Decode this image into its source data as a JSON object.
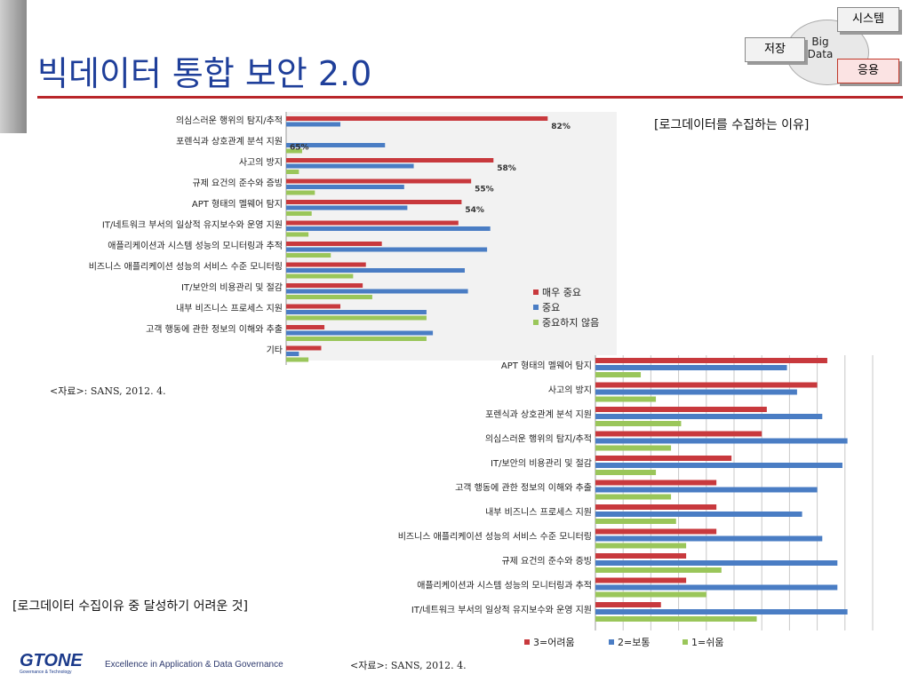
{
  "slide": {
    "title": "빅데이터 통합 보안 2.0"
  },
  "diagram": {
    "left_box": "저장",
    "top_box": "시스템",
    "bottom_box": "응용",
    "center_line1": "Big",
    "center_line2": "Data"
  },
  "chart1": {
    "caption": "[로그데이터를 수집하는 이유]",
    "source": "<자료>: SANS, 2012. 4.",
    "chart_data": {
      "type": "bar",
      "orientation": "horizontal",
      "categories": [
        "의심스러운 행위의 탐지/추적",
        "포렌식과 상호관계 분석 지원",
        "사고의 방지",
        "규제 요건의 준수와 증빙",
        "APT 형태의 멜웨어 탐지",
        "IT/네트워크 부서의 일상적 유지보수와 운영 지원",
        "애플리케이션과 시스템 성능의 모니터링과 추적",
        "비즈니스 애플리케이션 성능의 서비스 수준 모니터링",
        "IT/보안의 비용관리 및 절감",
        "내부 비즈니스 프로세스 지원",
        "고객 행동에 관한 정보의 이해와 추출",
        "기타"
      ],
      "series": [
        {
          "name": "매우 중요",
          "color": "#c8393d",
          "values": [
            82,
            0,
            65,
            58,
            55,
            54,
            30,
            25,
            24,
            17,
            12,
            11
          ]
        },
        {
          "name": "중요",
          "color": "#4a7dc4",
          "values": [
            17,
            31,
            40,
            37,
            38,
            64,
            63,
            56,
            57,
            44,
            46,
            4
          ]
        },
        {
          "name": "중요하지 않음",
          "color": "#9ac65a",
          "values": [
            0,
            5,
            4,
            9,
            8,
            7,
            14,
            21,
            27,
            44,
            44,
            7
          ]
        }
      ],
      "value_labels": [
        "82%",
        "65%",
        "58%",
        "55%",
        "54%"
      ],
      "xlim": [
        0,
        100
      ],
      "legend_position": "right"
    }
  },
  "chart2": {
    "caption": "[로그데이터 수집이유 중 달성하기 어려운 것]",
    "source": "<자료>: SANS, 2012. 4.",
    "chart_data": {
      "type": "bar",
      "orientation": "horizontal",
      "categories": [
        "APT 형태의 멜웨어 탐지",
        "사고의 방지",
        "포렌식과 상호관계 분석 지원",
        "의심스러운 행위의 탐지/추적",
        "IT/보안의 비용관리 및 절감",
        "고객 행동에 관한 정보의 이해와 추출",
        "내부 비즈니스 프로세스 지원",
        "비즈니스 애플리케이션 성능의 서비스 수준 모니터링",
        "규제 요건의 준수와 증빙",
        "애플리케이션과 시스템 성능의 모니터링과 추적",
        "IT/네트워크 부서의 일상적 유지보수와 운영 지원"
      ],
      "series": [
        {
          "name": "3=어려움",
          "color": "#c8393d",
          "values": [
            46,
            44,
            34,
            33,
            27,
            24,
            24,
            24,
            18,
            18,
            13
          ]
        },
        {
          "name": "2=보통",
          "color": "#4a7dc4",
          "values": [
            38,
            40,
            45,
            50,
            49,
            44,
            41,
            45,
            48,
            48,
            50
          ]
        },
        {
          "name": "1=쉬움",
          "color": "#9ac65a",
          "values": [
            9,
            12,
            17,
            15,
            12,
            15,
            16,
            18,
            25,
            22,
            32
          ]
        }
      ],
      "xlim": [
        0,
        55
      ],
      "grid": true,
      "legend_position": "bottom"
    }
  },
  "footer": {
    "logo_text": "GTONE",
    "logo_subtext": "Governance & Technology",
    "tagline": "Excellence in Application & Data Governance"
  }
}
